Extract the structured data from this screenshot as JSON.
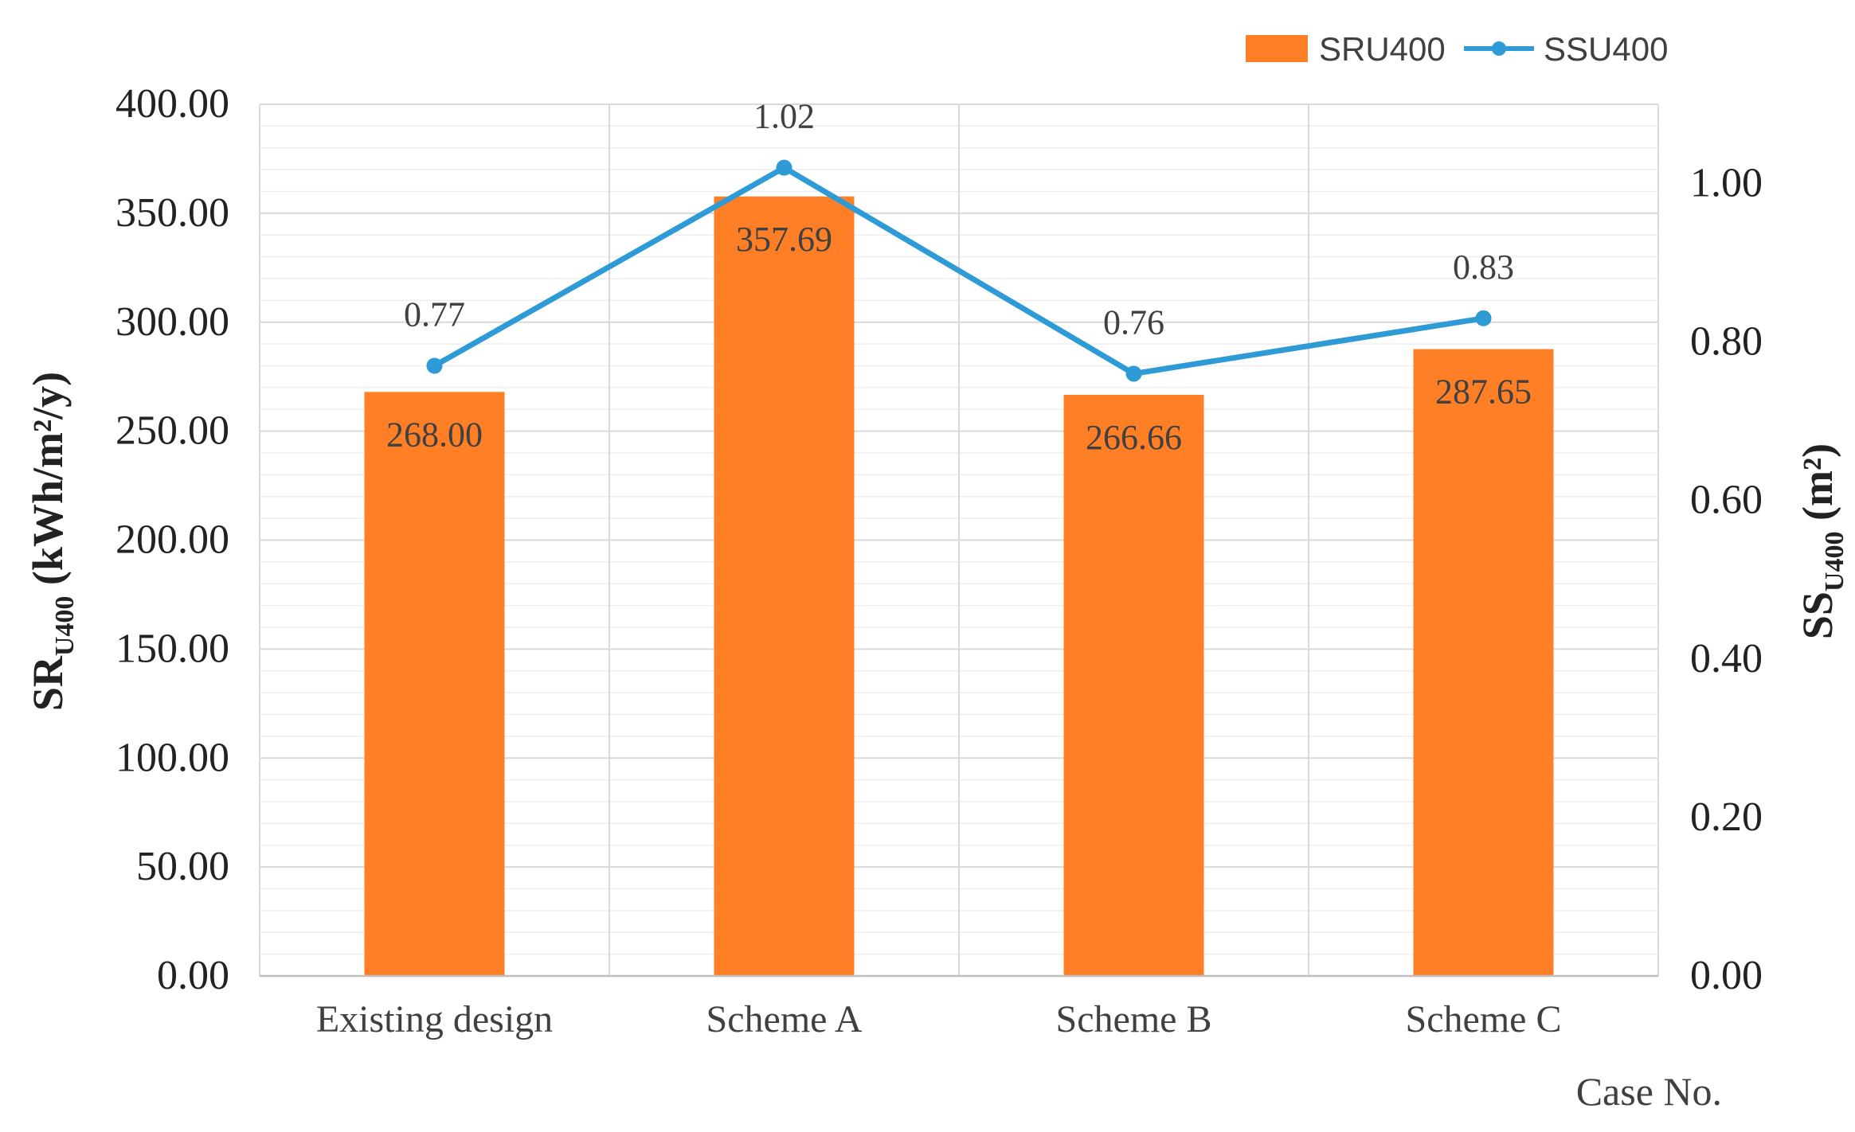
{
  "chart_data": {
    "type": "bar+line",
    "categories": [
      "Existing design",
      "Scheme A",
      "Scheme B",
      "Scheme C"
    ],
    "series": [
      {
        "name": "SRU400",
        "kind": "bar",
        "axis": "left",
        "color": "#FF7F27",
        "values": [
          268.0,
          357.69,
          266.66,
          287.65
        ],
        "labels": [
          "268.00",
          "357.69",
          "266.66",
          "287.65"
        ]
      },
      {
        "name": "SSU400",
        "kind": "line",
        "axis": "right",
        "color": "#2E9BD6",
        "values": [
          0.77,
          1.02,
          0.76,
          0.83
        ],
        "labels": [
          "0.77",
          "1.02",
          "0.76",
          "0.83"
        ]
      }
    ],
    "left_axis": {
      "title_main": "SR",
      "title_sub": "U400",
      "title_unit": " (kWh/m²/y)",
      "min": 0,
      "max": 400,
      "ticks": [
        0,
        50,
        100,
        150,
        200,
        250,
        300,
        350,
        400
      ],
      "tick_labels": [
        "0.00",
        "50.00",
        "100.00",
        "150.00",
        "200.00",
        "250.00",
        "300.00",
        "350.00",
        "400.00"
      ]
    },
    "right_axis": {
      "title_main": "SS",
      "title_sub": "U400",
      "title_unit": " (m²)",
      "min": 0,
      "max": 1.1,
      "ticks": [
        0,
        0.2,
        0.4,
        0.6,
        0.8,
        1.0
      ],
      "tick_labels": [
        "0.00",
        "0.20",
        "0.40",
        "0.60",
        "0.80",
        "1.00"
      ]
    },
    "xlabel": "Case No.",
    "legend": {
      "position": "top-right",
      "entries": [
        "SRU400",
        "SSU400"
      ]
    },
    "grid": true
  }
}
